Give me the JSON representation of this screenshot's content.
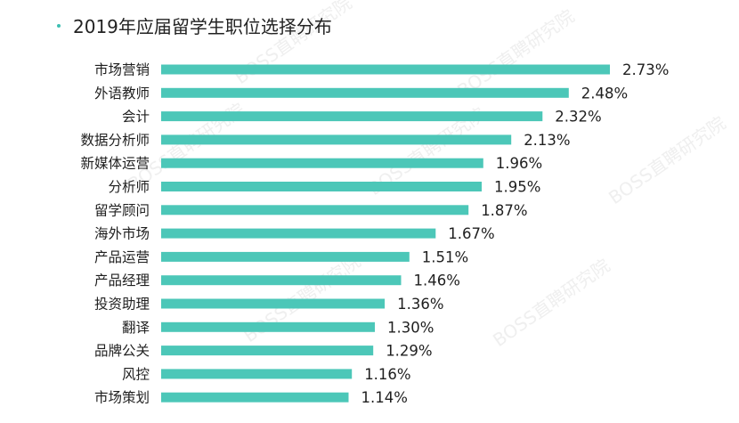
{
  "title": "2019年应届留学生职位选择分布",
  "watermark_text": "BOSS直聘研究院",
  "colors": {
    "bar": "#4cc7b8",
    "accent_dot": "#3dbfb2",
    "text": "#1f1f1f"
  },
  "chart_data": {
    "type": "bar",
    "orientation": "horizontal",
    "title": "2019年应届留学生职位选择分布",
    "categories": [
      "市场营销",
      "外语教师",
      "会计",
      "数据分析师",
      "新媒体运营",
      "分析师",
      "留学顾问",
      "海外市场",
      "产品运营",
      "产品经理",
      "投资助理",
      "翻译",
      "品牌公关",
      "风控",
      "市场策划"
    ],
    "values": [
      2.73,
      2.48,
      2.32,
      2.13,
      1.96,
      1.95,
      1.87,
      1.67,
      1.51,
      1.46,
      1.36,
      1.3,
      1.29,
      1.16,
      1.14
    ],
    "value_labels": [
      "2.73%",
      "2.48%",
      "2.32%",
      "2.13%",
      "1.96%",
      "1.95%",
      "1.87%",
      "1.67%",
      "1.51%",
      "1.46%",
      "1.36%",
      "1.30%",
      "1.29%",
      "1.16%",
      "1.14%"
    ],
    "unit": "%",
    "xlim": [
      0,
      2.73
    ],
    "grid": false,
    "legend": "none"
  }
}
